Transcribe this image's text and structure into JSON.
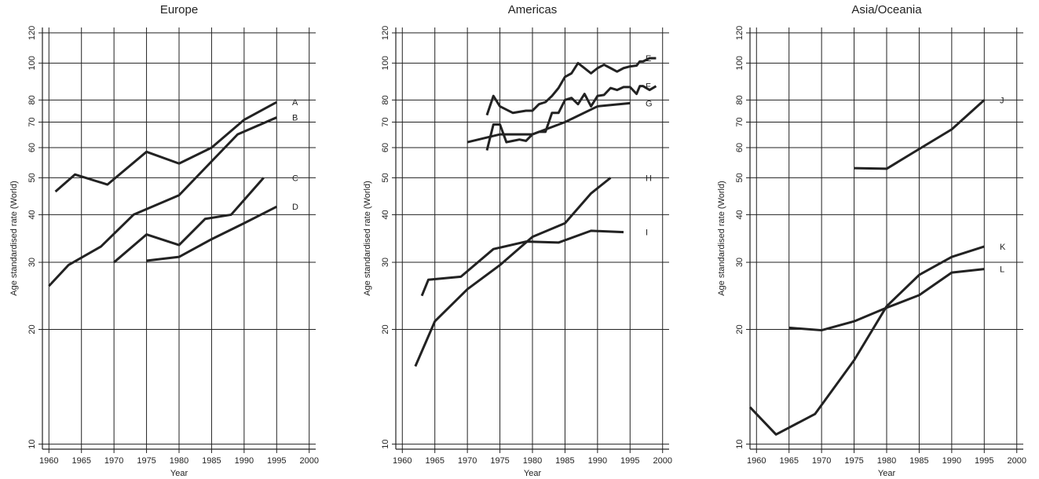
{
  "chart_data": [
    {
      "type": "line",
      "title": "Europe",
      "x_label": "Year",
      "y_label": "Age standardised rate (World)",
      "log_y": true,
      "grid": true,
      "xlim": [
        1959,
        2001
      ],
      "ylim": [
        9.7,
        124
      ],
      "xticks": [
        1960,
        1965,
        1970,
        1975,
        1980,
        1985,
        1990,
        1995,
        2000
      ],
      "yticks": [
        10,
        20,
        30,
        40,
        50,
        60,
        70,
        80,
        100,
        120
      ],
      "series": [
        {
          "name": "A",
          "color": "#222222",
          "x": [
            1961,
            1964,
            1969,
            1975,
            1980,
            1985,
            1990,
            1995
          ],
          "values": [
            46,
            51,
            48,
            58.5,
            54.5,
            60,
            71,
            79
          ]
        },
        {
          "name": "B",
          "color": "#222222",
          "x": [
            1960,
            1963,
            1968,
            1973,
            1980,
            1984,
            1989,
            1995
          ],
          "values": [
            26,
            29.5,
            33,
            40,
            45,
            53,
            65,
            72
          ]
        },
        {
          "name": "C",
          "color": "#222222",
          "x": [
            1970,
            1975,
            1980,
            1984,
            1988,
            1993
          ],
          "values": [
            30,
            35.5,
            33.3,
            39,
            40,
            50
          ]
        },
        {
          "name": "D",
          "color": "#222222",
          "x": [
            1975,
            1980,
            1985,
            1990,
            1995
          ],
          "values": [
            30.3,
            31,
            34.5,
            38,
            42
          ]
        }
      ]
    },
    {
      "type": "line",
      "title": "Americas",
      "x_label": "Year",
      "y_label": "Age standardised rate (World)",
      "log_y": true,
      "grid": true,
      "xlim": [
        1959,
        2001
      ],
      "ylim": [
        9.7,
        124
      ],
      "xticks": [
        1960,
        1965,
        1970,
        1975,
        1980,
        1985,
        1990,
        1995,
        2000
      ],
      "yticks": [
        10,
        20,
        30,
        40,
        50,
        60,
        70,
        80,
        100,
        120
      ],
      "series": [
        {
          "name": "E",
          "color": "#222222",
          "x": [
            1973,
            1974,
            1975,
            1977,
            1978,
            1979,
            1980,
            1981,
            1982,
            1983,
            1984,
            1985,
            1986,
            1987,
            1988,
            1989,
            1990,
            1991,
            1992,
            1993,
            1994,
            1995,
            1996,
            1996.5,
            1997,
            1998,
            1999
          ],
          "values": [
            73,
            82,
            77,
            74,
            74.5,
            75,
            75,
            78,
            79,
            82,
            86,
            92,
            94,
            100,
            97,
            94,
            97,
            99,
            97,
            95,
            97,
            98,
            98.5,
            101,
            101,
            103,
            103
          ]
        },
        {
          "name": "F",
          "color": "#222222",
          "x": [
            1973,
            1974,
            1975,
            1976,
            1977,
            1978,
            1979,
            1980,
            1981,
            1982,
            1983,
            1984,
            1985,
            1986,
            1987,
            1988,
            1989,
            1990,
            1991,
            1992,
            1993,
            1994,
            1995,
            1996,
            1996.5,
            1997,
            1998,
            1999
          ],
          "values": [
            59,
            69,
            69,
            62,
            62.5,
            63,
            62.5,
            65,
            66,
            66,
            74,
            74,
            80,
            81,
            78,
            83,
            77,
            82,
            82.5,
            86,
            85,
            86.5,
            86.5,
            83,
            87,
            87,
            85,
            87
          ]
        },
        {
          "name": "G",
          "color": "#222222",
          "x": [
            1970,
            1975,
            1980,
            1985,
            1990,
            1995
          ],
          "values": [
            62,
            65,
            65,
            70,
            77,
            78.5
          ]
        },
        {
          "name": "H",
          "color": "#222222",
          "x": [
            1962,
            1965,
            1970,
            1975,
            1980,
            1985,
            1989,
            1992
          ],
          "values": [
            16,
            21,
            25.5,
            29.5,
            35,
            38,
            45.5,
            50
          ]
        },
        {
          "name": "I",
          "color": "#222222",
          "x": [
            1963,
            1964,
            1969,
            1974,
            1979,
            1984,
            1989,
            1994
          ],
          "values": [
            24.5,
            27,
            27.5,
            32.5,
            34,
            33.8,
            36.3,
            36
          ]
        }
      ]
    },
    {
      "type": "line",
      "title": "Asia/Oceania",
      "x_label": "Year",
      "y_label": "Age standardised rate (World)",
      "log_y": true,
      "grid": true,
      "xlim": [
        1959,
        2001
      ],
      "ylim": [
        9.7,
        124
      ],
      "xticks": [
        1960,
        1965,
        1970,
        1975,
        1980,
        1985,
        1990,
        1995,
        2000
      ],
      "yticks": [
        10,
        20,
        30,
        40,
        50,
        60,
        70,
        80,
        100,
        120
      ],
      "series": [
        {
          "name": "J",
          "color": "#222222",
          "x": [
            1975,
            1980,
            1985,
            1990,
            1995
          ],
          "values": [
            53,
            52.8,
            59.5,
            67,
            80
          ]
        },
        {
          "name": "K",
          "color": "#222222",
          "x": [
            1959,
            1963,
            1969,
            1975,
            1980,
            1985,
            1990,
            1995
          ],
          "values": [
            12.5,
            10.6,
            12,
            16.6,
            23,
            27.8,
            31,
            33
          ]
        },
        {
          "name": "L",
          "color": "#222222",
          "x": [
            1965,
            1970,
            1975,
            1980,
            1985,
            1990,
            1995
          ],
          "values": [
            20.2,
            19.9,
            21,
            22.8,
            24.6,
            28.2,
            28.8
          ]
        }
      ]
    }
  ]
}
